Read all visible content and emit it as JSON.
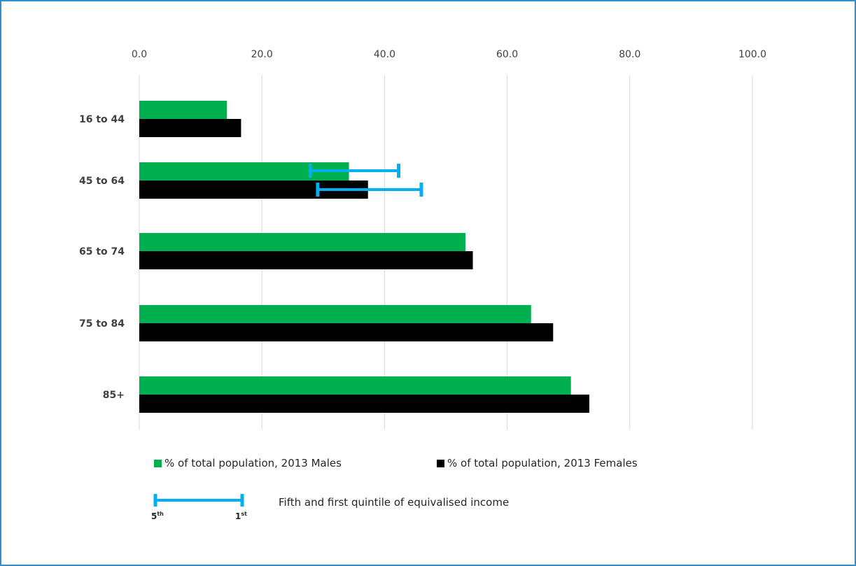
{
  "chart_data": {
    "type": "bar",
    "orientation": "horizontal",
    "categories": [
      "16 to 44",
      "45 to 64",
      "65 to 74",
      "75 to 84",
      "85+"
    ],
    "series": [
      {
        "name": "% of total population, 2013 Males",
        "color": "#00b050",
        "values": [
          14.3,
          34.2,
          53.2,
          63.9,
          70.4
        ]
      },
      {
        "name": "% of total population, 2013 Females",
        "color": "#000000",
        "values": [
          16.6,
          37.3,
          54.4,
          67.5,
          73.4
        ]
      }
    ],
    "error_ranges": {
      "name": "Fifth and first quintile of equivalised income",
      "color": "#00b0f0",
      "category": "45 to 64",
      "males": [
        27.9,
        42.3
      ],
      "females": [
        29.1,
        46.0
      ]
    },
    "xlim": [
      0,
      100
    ],
    "xticks": [
      "0.0",
      "20.0",
      "40.0",
      "60.0",
      "80.0",
      "100.0"
    ],
    "xtick_values": [
      0,
      20,
      40,
      60,
      80,
      100
    ],
    "grid": true,
    "legend_position": "bottom"
  },
  "legend": {
    "males_label": "% of total population, 2013 Males",
    "females_label": "% of total population, 2013 Females",
    "range_label": "Fifth and first quintile of equivalised income",
    "fifth": "5",
    "fifth_sup": "th",
    "first": "1",
    "first_sup": "st"
  }
}
